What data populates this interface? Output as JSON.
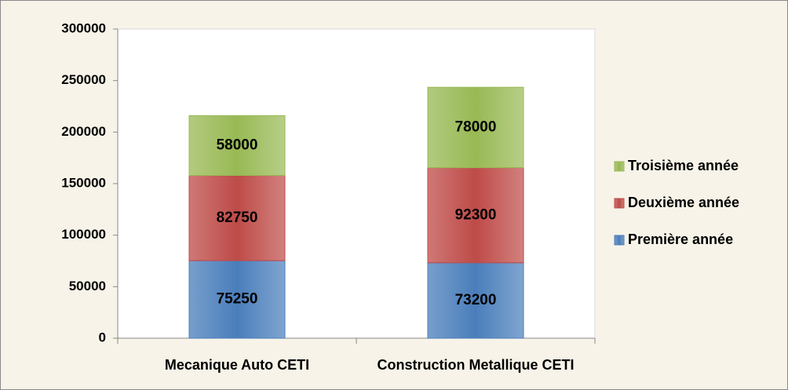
{
  "chart_data": {
    "type": "stacked_bar",
    "categories": [
      "Mecanique Auto CETI",
      "Construction Metallique CETI"
    ],
    "series": [
      {
        "name": "Première année",
        "color": "#4a7ebb",
        "values": [
          75250,
          73200
        ]
      },
      {
        "name": "Deuxième année",
        "color": "#be4b48",
        "values": [
          82750,
          92300
        ]
      },
      {
        "name": "Troisième année",
        "color": "#98b954",
        "values": [
          58000,
          78000
        ]
      }
    ],
    "ylim": [
      0,
      300000
    ],
    "yticks": [
      0,
      50000,
      100000,
      150000,
      200000,
      250000,
      300000
    ],
    "legend": "right"
  }
}
